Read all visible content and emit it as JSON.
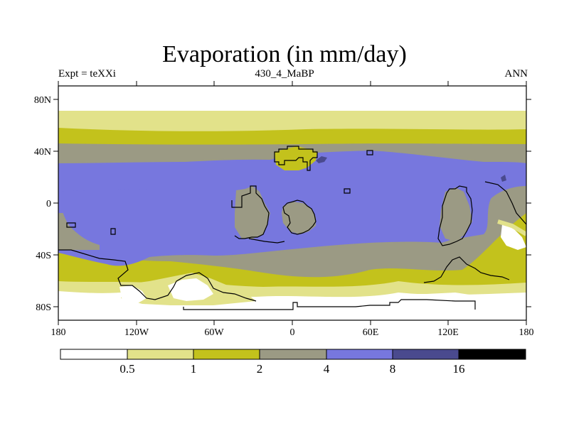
{
  "plot": {
    "title": "Evaporation (in mm/day)",
    "left_label": "Expt = teXXi",
    "center_label": "430_4_MaBP",
    "right_label": "ANN"
  },
  "axes": {
    "x_ticks": [
      "180",
      "120W",
      "60W",
      "0",
      "60E",
      "120E",
      "180"
    ],
    "y_ticks": [
      "80N",
      "40N",
      "0",
      "40S",
      "80S"
    ]
  },
  "colorbar": {
    "labels": [
      "0.5",
      "1",
      "2",
      "4",
      "8",
      "16"
    ],
    "colors": [
      "#ffffff",
      "#e2e28a",
      "#c3c21c",
      "#9b9a84",
      "#7777de",
      "#4a4a8e",
      "#000000"
    ]
  },
  "colors": {
    "very_low": "#ffffff",
    "low": "#e2e28a",
    "mid": "#c3c21c",
    "gray": "#9b9a84",
    "blue": "#7777de",
    "dark_blue": "#4a4a8e",
    "coast": "#000000"
  }
}
